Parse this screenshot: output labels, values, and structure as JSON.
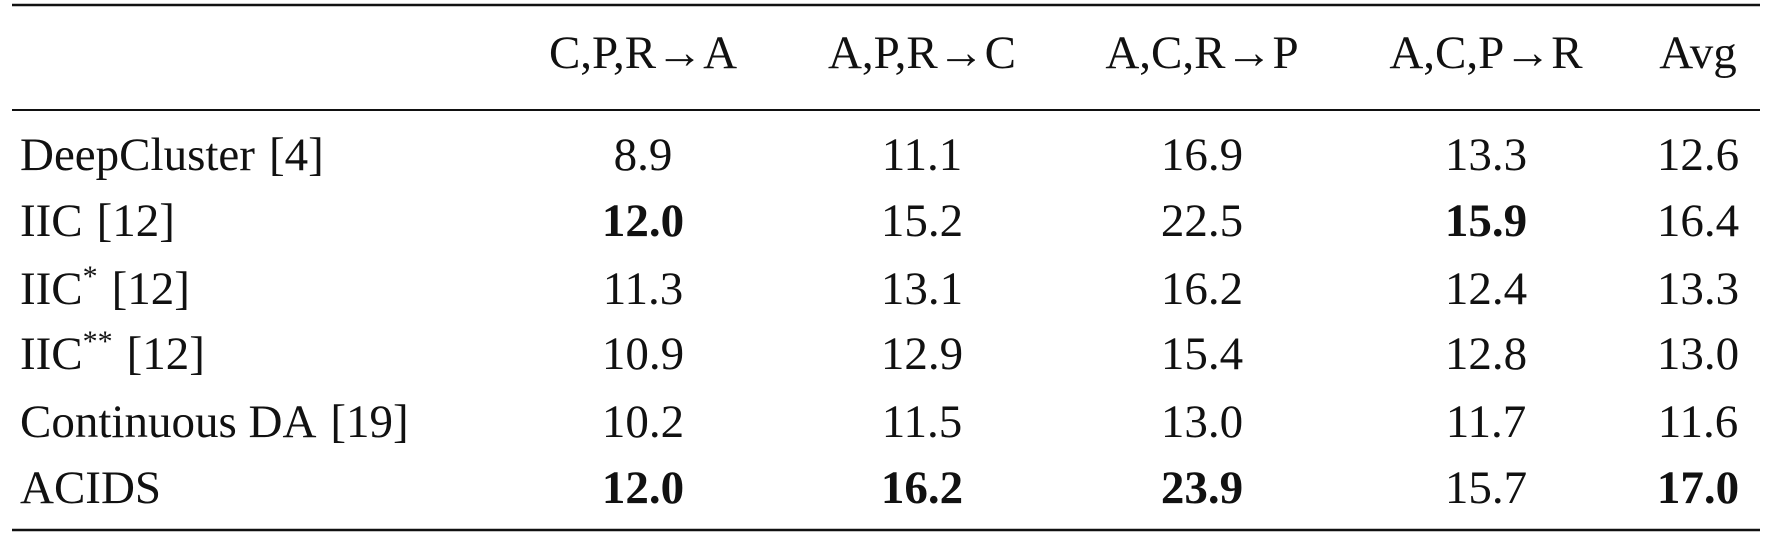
{
  "table": {
    "columns": [
      "C,P,R→A",
      "A,P,R→C",
      "A,C,R→P",
      "A,C,P→R",
      "Avg"
    ],
    "rows": [
      {
        "name": "DeepCluster",
        "ref": "[4]",
        "cells": [
          "8.9",
          "11.1",
          "16.9",
          "13.3",
          "12.6"
        ]
      },
      {
        "name": "IIC",
        "ref": "[12]",
        "cells": [
          "12.0",
          "15.2",
          "22.5",
          "15.9",
          "16.4"
        ],
        "bold": [
          0,
          3
        ]
      },
      {
        "name": "IIC",
        "sup": "*",
        "ref": "[12]",
        "cells": [
          "11.3",
          "13.1",
          "16.2",
          "12.4",
          "13.3"
        ]
      },
      {
        "name": "IIC",
        "sup": "**",
        "ref": "[12]",
        "cells": [
          "10.9",
          "12.9",
          "15.4",
          "12.8",
          "13.0"
        ]
      },
      {
        "name": "Continuous DA",
        "ref": "[19]",
        "cells": [
          "10.2",
          "11.5",
          "13.0",
          "11.7",
          "11.6"
        ]
      },
      {
        "name": "ACIDS",
        "cells": [
          "12.0",
          "16.2",
          "23.9",
          "15.7",
          "17.0"
        ],
        "bold": [
          0,
          1,
          2,
          4
        ]
      }
    ]
  }
}
